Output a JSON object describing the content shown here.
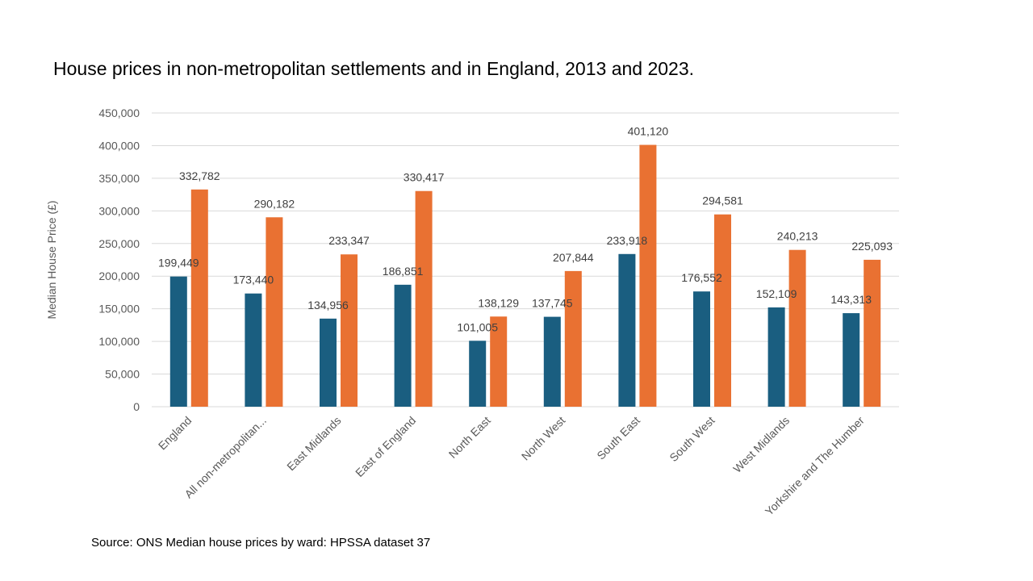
{
  "slide": {
    "title": "House prices in non-metropolitan settlements and in England, 2013 and 2023.",
    "source": "Source: ONS Median house prices by ward: HPSSA dataset 37"
  },
  "chart_data": {
    "type": "bar",
    "title": "",
    "xlabel": "",
    "ylabel": "Median House Price (£)",
    "ylim": [
      0,
      450000
    ],
    "y_ticks": [
      0,
      50000,
      100000,
      150000,
      200000,
      250000,
      300000,
      350000,
      400000,
      450000
    ],
    "y_tick_labels": [
      "0",
      "50,000",
      "100,000",
      "150,000",
      "200,000",
      "250,000",
      "300,000",
      "350,000",
      "400,000",
      "450,000"
    ],
    "grid": true,
    "legend": "none",
    "categories": [
      "England",
      "All non-metropolitan...",
      "East Midlands",
      "East of England",
      "North East",
      "North West",
      "South East",
      "South West",
      "West Midlands",
      "Yorkshire and The Humber"
    ],
    "series": [
      {
        "color": "#1a5e80",
        "values": [
          199449,
          173440,
          134956,
          186851,
          101005,
          137745,
          233918,
          176552,
          152109,
          143313
        ],
        "labels": [
          "199,449",
          "173,440",
          "134,956",
          "186,851",
          "101,005",
          "137,745",
          "233,918",
          "176,552",
          "152,109",
          "143,313"
        ]
      },
      {
        "color": "#e97132",
        "values": [
          332782,
          290182,
          233347,
          330417,
          138129,
          207844,
          401120,
          294581,
          240213,
          225093
        ],
        "labels": [
          "332,782",
          "290,182",
          "233,347",
          "330,417",
          "138,129",
          "207,844",
          "401,120",
          "294,581",
          "240,213",
          "225,093"
        ]
      }
    ]
  }
}
